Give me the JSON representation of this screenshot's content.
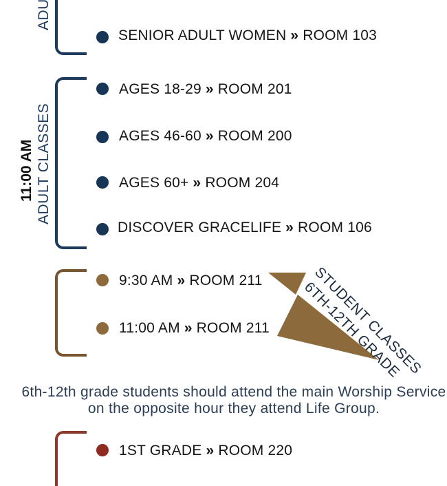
{
  "top_section": {
    "label_partial": "ADU",
    "items": [
      {
        "name": "SENIOR ADULT WOMEN",
        "room": "ROOM 103"
      }
    ]
  },
  "adult_11": {
    "time": "11:00 AM",
    "label": "ADULT CLASSES",
    "items": [
      {
        "name": "AGES 18-29",
        "room": "ROOM 201"
      },
      {
        "name": "AGES 46-60",
        "room": "ROOM 200"
      },
      {
        "name": "AGES 60+",
        "room": "ROOM 204"
      },
      {
        "name": "DISCOVER GRACELIFE",
        "room": "ROOM 106"
      }
    ]
  },
  "student": {
    "label_line1": "STUDENT CLASSES",
    "label_line2": "6TH-12TH GRADE",
    "items": [
      {
        "name": "9:30 AM",
        "room": "ROOM 211"
      },
      {
        "name": "11:00 AM",
        "room": "ROOM 211"
      }
    ],
    "note": "6th-12th grade students should attend the main Worship Service on the opposite hour they attend Life Group."
  },
  "children": {
    "items": [
      {
        "name": "1ST GRADE",
        "room": "ROOM 220"
      }
    ]
  },
  "separator": "»",
  "colors": {
    "navy": "#1e3a5c",
    "gold": "#8c6a3c",
    "red": "#8f2a20"
  }
}
